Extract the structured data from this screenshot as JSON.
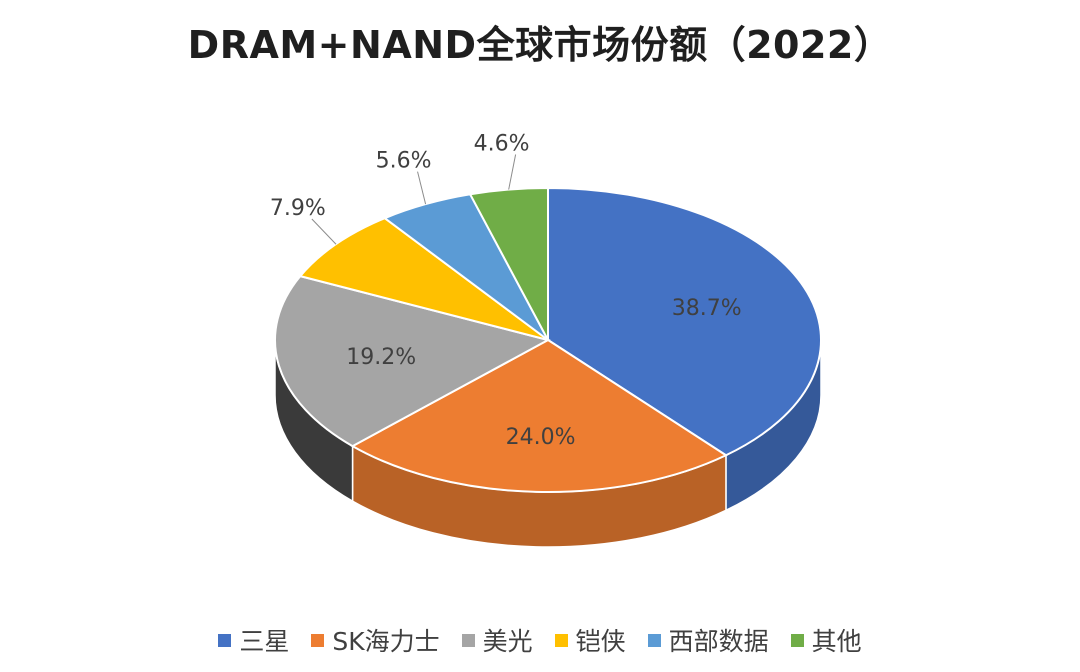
{
  "chart_data": {
    "type": "pie",
    "title": "DRAM+NAND全球市场份额（2022）",
    "unit": "%",
    "categories": [
      "三星",
      "SK海力士",
      "美光",
      "铠侠",
      "西部数据",
      "其他"
    ],
    "values": [
      38.7,
      24.0,
      19.2,
      7.9,
      5.6,
      4.6
    ],
    "data_labels": [
      "38.7%",
      "24.0%",
      "19.2%",
      "7.9%",
      "5.6%",
      "4.6%"
    ],
    "colors": [
      "#4472C4",
      "#ED7D31",
      "#A5A5A5",
      "#FFC000",
      "#5B9BD5",
      "#70AD47"
    ],
    "legend_position": "bottom",
    "style": "3d"
  }
}
